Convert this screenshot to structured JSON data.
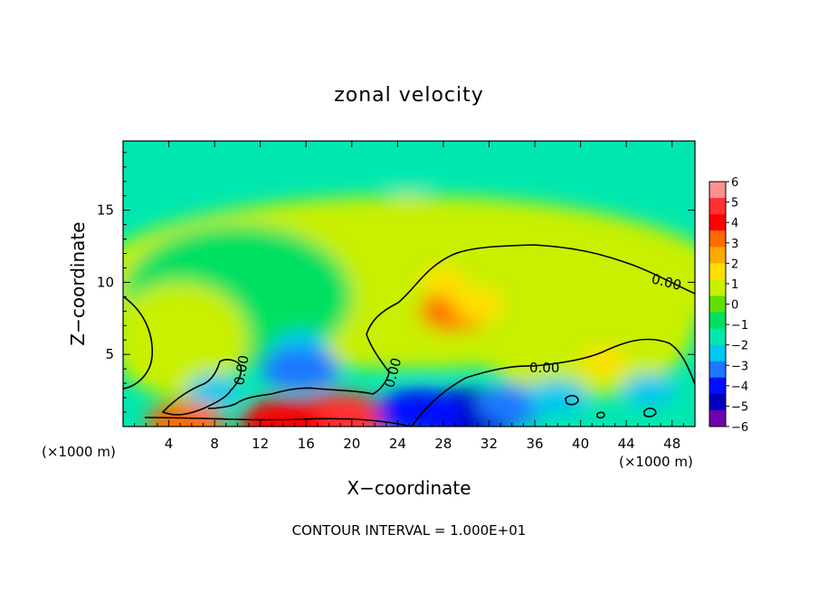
{
  "chart_data": {
    "type": "heatmap",
    "title": "zonal velocity",
    "xlabel": "X−coordinate",
    "ylabel": "Z−coordinate",
    "x_unit_left": "(×1000 m)",
    "x_unit_right": "(×1000 m)",
    "footer": "CONTOUR INTERVAL = 1.000E+01",
    "xlim": [
      0,
      50
    ],
    "ylim": [
      0,
      19.8
    ],
    "x_ticks": [
      4,
      8,
      12,
      16,
      20,
      24,
      28,
      32,
      36,
      40,
      44,
      48
    ],
    "x_tick_labels": [
      "4",
      "8",
      "12",
      "16",
      "20",
      "24",
      "28",
      "32",
      "36",
      "40",
      "44",
      "48"
    ],
    "y_ticks": [
      5,
      10,
      15
    ],
    "y_tick_labels": [
      "5",
      "10",
      "15"
    ],
    "colorbar": {
      "min": -6,
      "max": 6,
      "labels": [
        "6",
        "5",
        "4",
        "3",
        "2",
        "1",
        "0",
        "−1",
        "−2",
        "−3",
        "−4",
        "−5",
        "−6"
      ],
      "colors": [
        "#ff9090",
        "#ff3030",
        "#ff0000",
        "#ff6a00",
        "#ffaa00",
        "#ffe000",
        "#c8f000",
        "#60e000",
        "#00e060",
        "#00e8b0",
        "#00c8f0",
        "#1e78ff",
        "#0010ff",
        "#0000c0",
        "#7000b0"
      ]
    },
    "contour_labels": [
      "0.00",
      "0.00",
      "0.00",
      "0.00",
      "0.00"
    ],
    "features": [
      {
        "x": 29,
        "z": 8,
        "value": 3.0
      },
      {
        "x": 31,
        "z": 8.5,
        "value": 2.0
      },
      {
        "x": 28,
        "z": 10,
        "value": 1.5
      },
      {
        "x": 15.5,
        "z": 5.5,
        "value": -2.0
      },
      {
        "x": 15.5,
        "z": 4.0,
        "value": -3.5
      },
      {
        "x": 19,
        "z": 0.6,
        "value": 4.5
      },
      {
        "x": 14,
        "z": 0.3,
        "value": 4.0
      },
      {
        "x": 5.5,
        "z": 0.3,
        "value": 3.5
      },
      {
        "x": 30,
        "z": 0.7,
        "value": -5.0
      },
      {
        "x": 34,
        "z": 1.5,
        "value": -3.0
      },
      {
        "x": 38,
        "z": 2.0,
        "value": -2.5
      },
      {
        "x": 26,
        "z": 1.0,
        "value": -4.0
      },
      {
        "x": 8,
        "z": 2.5,
        "value": -2.0
      },
      {
        "x": 46,
        "z": 2.5,
        "value": -2.0
      },
      {
        "x": 42,
        "z": 4.5,
        "value": 1.5
      },
      {
        "x": 3,
        "z": 4.5,
        "value": 1.0
      },
      {
        "x": 25,
        "z": 17,
        "value": -1.5
      },
      {
        "x": 10,
        "z": 12,
        "value": -0.5
      }
    ]
  }
}
